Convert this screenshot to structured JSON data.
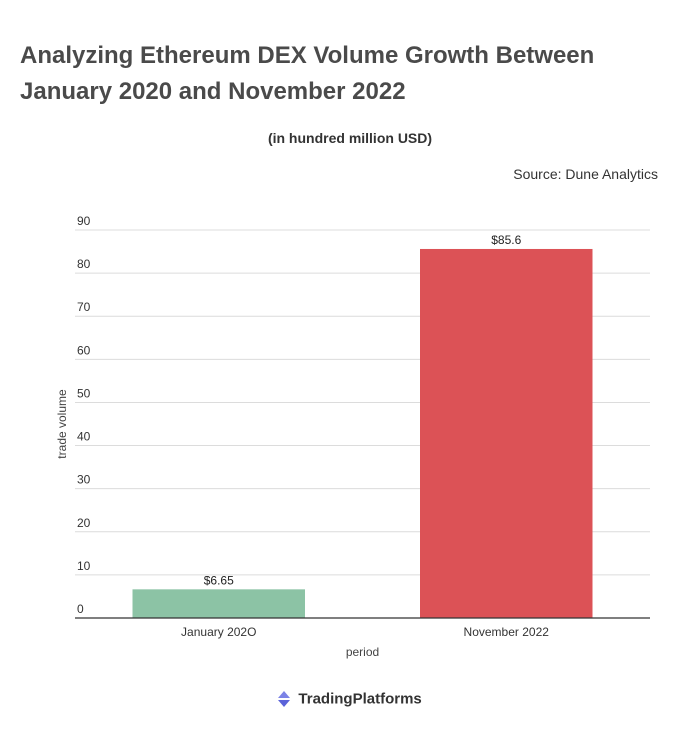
{
  "header": {
    "title": "Analyzing Ethereum DEX Volume Growth Between January 2020 and November 2022",
    "subtitle": "(in hundred million USD)",
    "source": "Source: Dune Analytics"
  },
  "brand": {
    "name": "TradingPlatforms",
    "logo_icon": "trading-platforms-logo-icon"
  },
  "chart_data": {
    "type": "bar",
    "categories": [
      "January 202O",
      "November 2022"
    ],
    "values": [
      6.65,
      85.6
    ],
    "data_labels": [
      "$6.65",
      "$85.6"
    ],
    "bar_colors": [
      "#8cc3a5",
      "#dc5256"
    ],
    "xlabel": "period",
    "ylabel": "trade volume",
    "ylim": [
      0,
      90
    ],
    "yticks": [
      0,
      10,
      20,
      30,
      40,
      50,
      60,
      70,
      80,
      90
    ],
    "grid": true,
    "legend": "none"
  }
}
